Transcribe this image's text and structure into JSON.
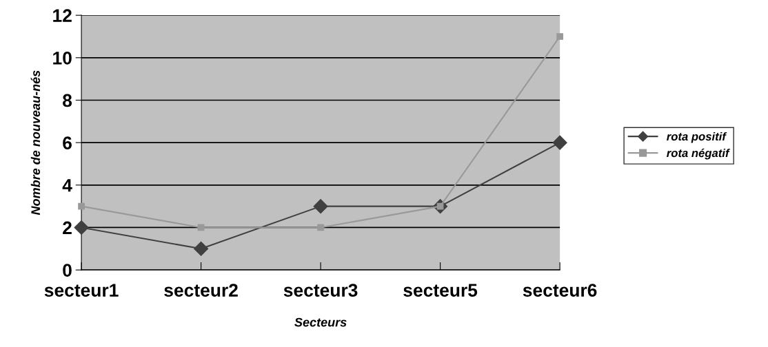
{
  "chart_data": {
    "type": "line",
    "xlabel": "Secteurs",
    "ylabel": "Nombre de nouveau-nés",
    "categories": [
      "secteur1",
      "secteur2",
      "secteur3",
      "secteur5",
      "secteur6"
    ],
    "series": [
      {
        "name": "rota positif",
        "color": "#404040",
        "values": [
          2,
          1,
          3,
          3,
          6
        ],
        "marker": "diamond"
      },
      {
        "name": "rota négatif",
        "color": "#999999",
        "values": [
          3,
          2,
          2,
          3,
          11
        ],
        "marker": "square"
      }
    ],
    "ylim": [
      0,
      12
    ],
    "yticks": [
      0,
      2,
      4,
      6,
      8,
      10,
      12
    ],
    "grid": "y",
    "legend": "right",
    "line_style": "solid"
  }
}
